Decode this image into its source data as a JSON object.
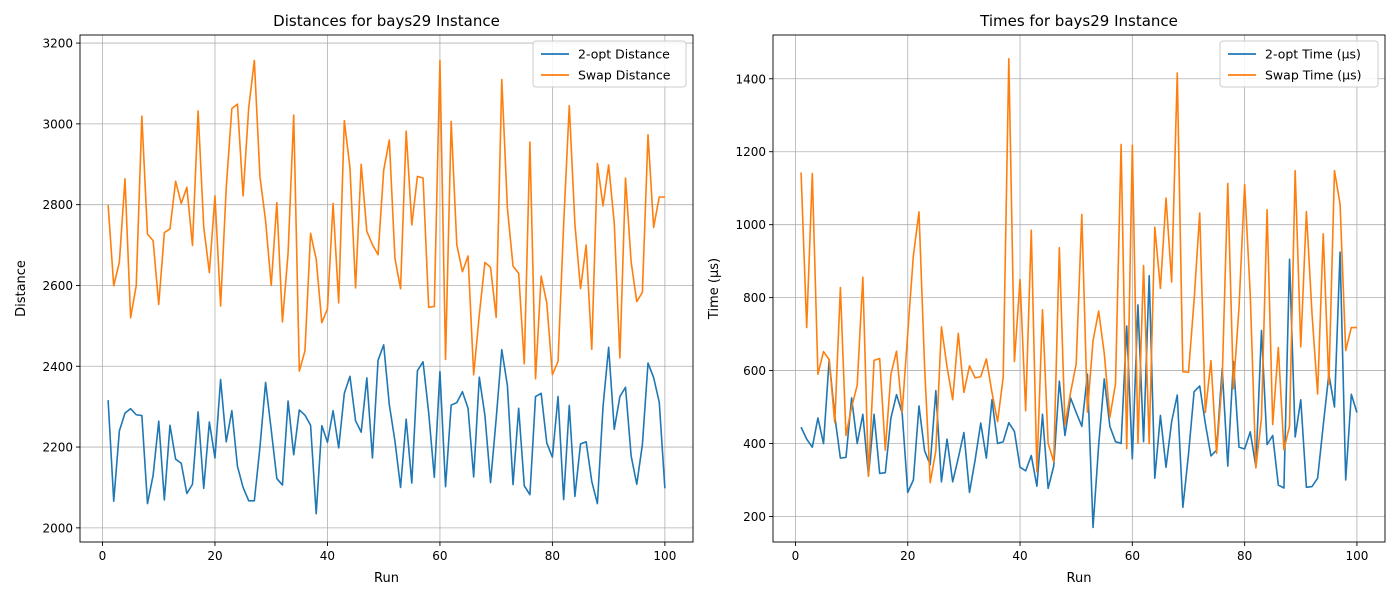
{
  "chart_data": [
    {
      "type": "line",
      "title": "Distances for bays29 Instance",
      "xlabel": "Run",
      "ylabel": "Distance",
      "xlim": [
        -4,
        105
      ],
      "ylim": [
        1965,
        3220
      ],
      "xticks": [
        0,
        20,
        40,
        60,
        80,
        100
      ],
      "yticks": [
        2000,
        2200,
        2400,
        2600,
        2800,
        3000,
        3200
      ],
      "grid": true,
      "legend": "top-right",
      "x_start": 1,
      "series": [
        {
          "name": "2-opt Distance",
          "color": "#1f77b4",
          "values": [
            2316,
            2066,
            2240,
            2284,
            2295,
            2280,
            2278,
            2060,
            2130,
            2264,
            2069,
            2254,
            2170,
            2160,
            2085,
            2108,
            2287,
            2098,
            2262,
            2173,
            2367,
            2213,
            2290,
            2152,
            2100,
            2067,
            2067,
            2200,
            2360,
            2243,
            2122,
            2106,
            2314,
            2181,
            2292,
            2279,
            2254,
            2035,
            2253,
            2212,
            2290,
            2198,
            2333,
            2375,
            2265,
            2237,
            2371,
            2173,
            2415,
            2453,
            2305,
            2215,
            2100,
            2269,
            2111,
            2389,
            2411,
            2285,
            2125,
            2387,
            2102,
            2304,
            2310,
            2337,
            2296,
            2126,
            2373,
            2278,
            2112,
            2270,
            2441,
            2352,
            2107,
            2296,
            2104,
            2082,
            2325,
            2333,
            2210,
            2175,
            2325,
            2070,
            2303,
            2078,
            2208,
            2213,
            2115,
            2060,
            2300,
            2447,
            2244,
            2325,
            2348,
            2178,
            2108,
            2206,
            2408,
            2372,
            2311,
            2098
          ]
        },
        {
          "name": "Swap Distance",
          "color": "#ff7f0e",
          "values": [
            2799,
            2599,
            2658,
            2864,
            2520,
            2600,
            3019,
            2727,
            2711,
            2553,
            2731,
            2740,
            2858,
            2803,
            2843,
            2699,
            3032,
            2745,
            2632,
            2822,
            2549,
            2841,
            3038,
            3049,
            2822,
            3040,
            3157,
            2869,
            2760,
            2600,
            2805,
            2510,
            2680,
            3022,
            2388,
            2438,
            2729,
            2665,
            2508,
            2542,
            2803,
            2557,
            3008,
            2892,
            2594,
            2900,
            2734,
            2701,
            2676,
            2885,
            2960,
            2667,
            2592,
            2982,
            2750,
            2870,
            2866,
            2546,
            2548,
            3157,
            2417,
            3006,
            2701,
            2634,
            2673,
            2379,
            2527,
            2657,
            2645,
            2521,
            3110,
            2791,
            2648,
            2630,
            2406,
            2955,
            2369,
            2623,
            2557,
            2379,
            2412,
            2751,
            3045,
            2752,
            2592,
            2700,
            2442,
            2902,
            2797,
            2898,
            2754,
            2421,
            2866,
            2658,
            2560,
            2583,
            2973,
            2744,
            2819,
            2819
          ]
        }
      ]
    },
    {
      "type": "line",
      "title": "Times for bays29 Instance",
      "xlabel": "Run",
      "ylabel": "Time (µs)",
      "xlim": [
        -4,
        105
      ],
      "ylim": [
        130,
        1520
      ],
      "xticks": [
        0,
        20,
        40,
        60,
        80,
        100
      ],
      "yticks": [
        200,
        400,
        600,
        800,
        1000,
        1200,
        1400
      ],
      "grid": true,
      "legend": "top-right",
      "x_start": 1,
      "series": [
        {
          "name": "2-opt Time (µs)",
          "color": "#1f77b4",
          "values": [
            445,
            412,
            390,
            470,
            400,
            630,
            475,
            360,
            362,
            525,
            400,
            480,
            312,
            480,
            318,
            320,
            470,
            534,
            484,
            266,
            300,
            503,
            380,
            342,
            545,
            295,
            412,
            295,
            360,
            430,
            266,
            355,
            456,
            360,
            520,
            400,
            405,
            457,
            433,
            335,
            325,
            367,
            283,
            480,
            277,
            338,
            571,
            422,
            525,
            485,
            447,
            590,
            170,
            395,
            577,
            447,
            405,
            400,
            722,
            358,
            780,
            405,
            860,
            305,
            477,
            335,
            460,
            533,
            225,
            370,
            542,
            558,
            455,
            366,
            382,
            605,
            338,
            625,
            390,
            385,
            432,
            337,
            710,
            397,
            422,
            286,
            278,
            905,
            418,
            520,
            280,
            282,
            305,
            450,
            590,
            500,
            925,
            300,
            535,
            485
          ]
        },
        {
          "name": "Swap Time (µs)",
          "color": "#ff7f0e",
          "values": [
            1143,
            718,
            1140,
            590,
            652,
            630,
            457,
            828,
            422,
            500,
            560,
            856,
            310,
            628,
            633,
            382,
            590,
            653,
            486,
            703,
            915,
            1035,
            610,
            293,
            380,
            720,
            610,
            520,
            702,
            540,
            613,
            580,
            583,
            632,
            540,
            460,
            582,
            1455,
            625,
            850,
            490,
            985,
            322,
            767,
            400,
            350,
            937,
            451,
            540,
            618,
            1028,
            486,
            682,
            763,
            647,
            472,
            564,
            1220,
            386,
            1218,
            400,
            888,
            400,
            993,
            825,
            1073,
            843,
            1416,
            597,
            595,
            793,
            1032,
            485,
            627,
            373,
            572,
            1113,
            550,
            773,
            1110,
            808,
            333,
            470,
            1041,
            452,
            663,
            383,
            448,
            1148,
            665,
            1036,
            756,
            536,
            975,
            562,
            1148,
            1056,
            655,
            718,
            718
          ]
        }
      ]
    }
  ]
}
